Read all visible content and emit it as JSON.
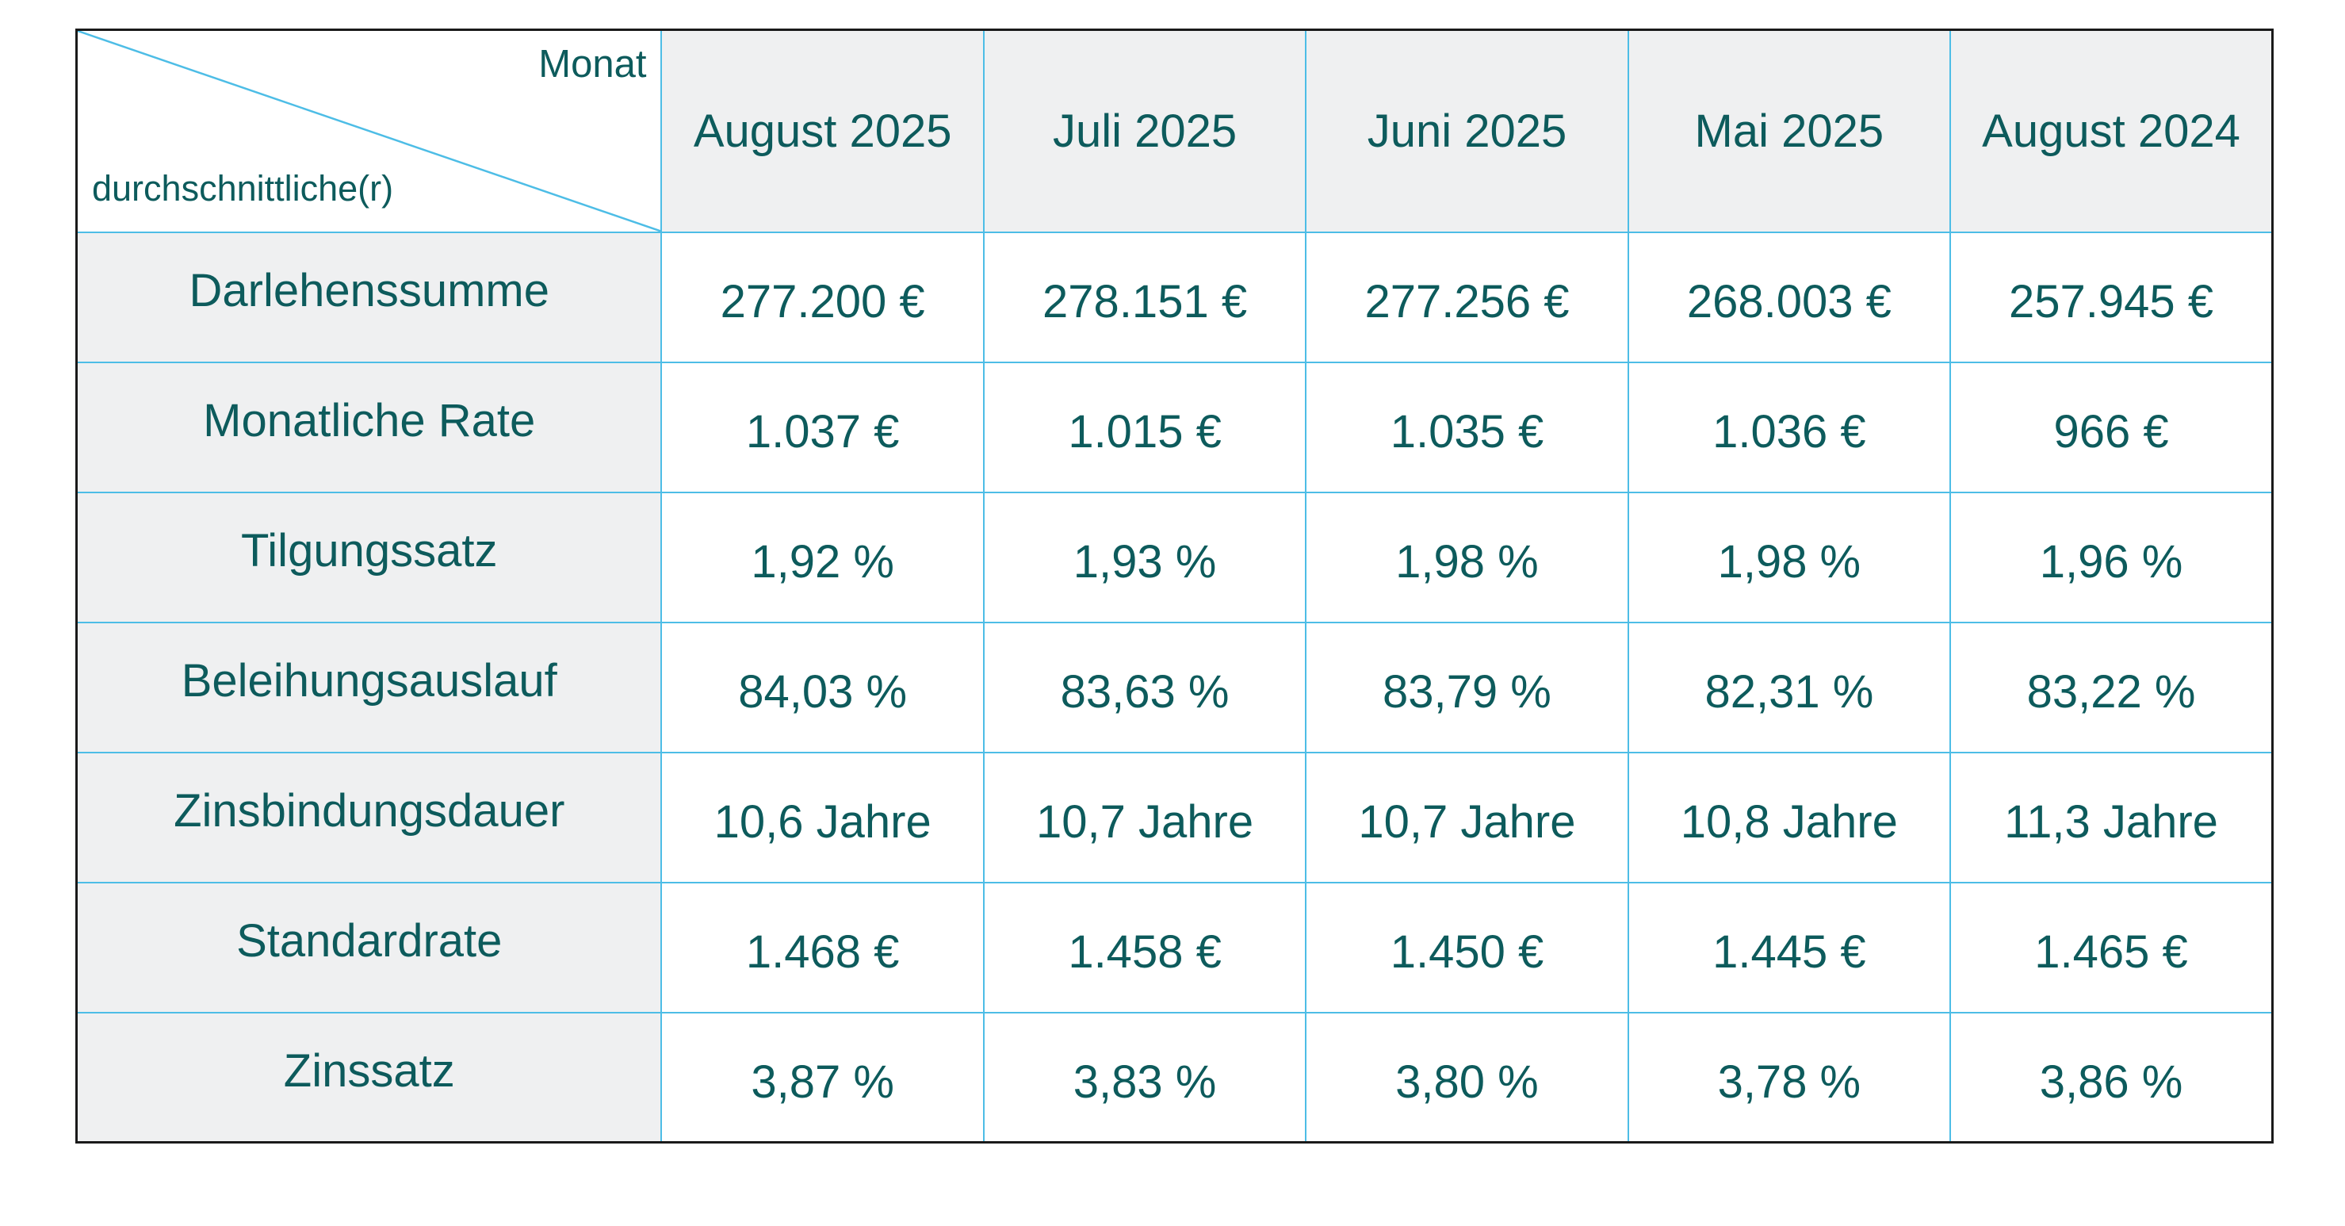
{
  "table": {
    "corner": {
      "top_label": "Monat",
      "bottom_label": "durchschnittliche(r)"
    },
    "columns": [
      "August 2025",
      "Juli 2025",
      "Juni 2025",
      "Mai 2025",
      "August 2024"
    ],
    "rows": [
      {
        "label": "Darlehenssumme",
        "values": [
          "277.200 €",
          "278.151 €",
          "277.256 €",
          "268.003 €",
          "257.945 €"
        ]
      },
      {
        "label": "Monatliche Rate",
        "values": [
          "1.037 €",
          "1.015 €",
          "1.035 €",
          "1.036 €",
          "966 €"
        ]
      },
      {
        "label": "Tilgungssatz",
        "values": [
          "1,92 %",
          "1,93 %",
          "1,98 %",
          "1,98 %",
          "1,96 %"
        ]
      },
      {
        "label": "Beleihungsauslauf",
        "values": [
          "84,03 %",
          "83,63 %",
          "83,79 %",
          "82,31 %",
          "83,22 %"
        ]
      },
      {
        "label": "Zinsbindungsdauer",
        "values": [
          "10,6 Jahre",
          "10,7 Jahre",
          "10,7 Jahre",
          "10,8 Jahre",
          "11,3 Jahre"
        ]
      },
      {
        "label": "Standardrate",
        "values": [
          "1.468 €",
          "1.458 €",
          "1.450 €",
          "1.445 €",
          "1.465 €"
        ]
      },
      {
        "label": "Zinssatz",
        "values": [
          "3,87 %",
          "3,83 %",
          "3,80 %",
          "3,78 %",
          "3,86 %"
        ]
      }
    ],
    "colors": {
      "text": "#0d5b5c",
      "grid": "#4dbde6",
      "header_fill": "#eff0f1",
      "outer_border": "#1a1a1a"
    }
  }
}
